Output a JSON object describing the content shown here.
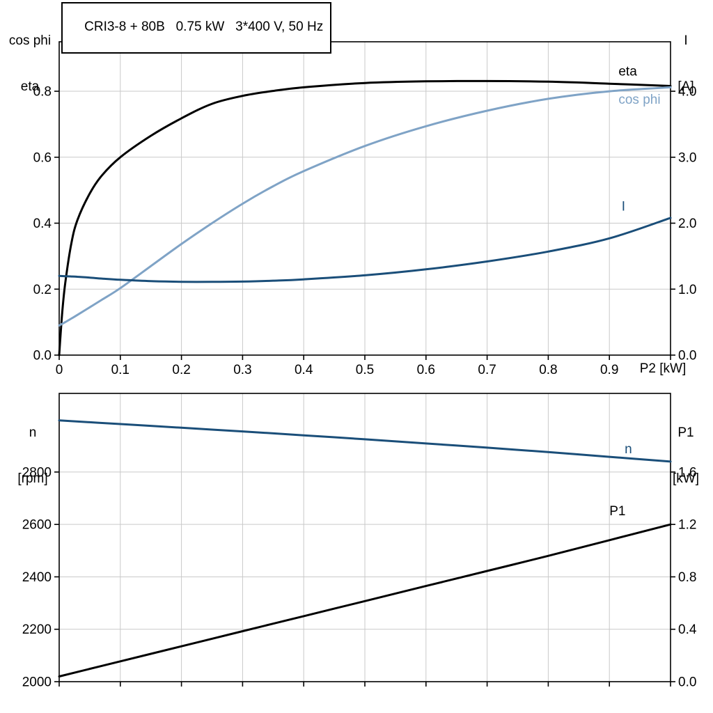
{
  "colors": {
    "black": "#000000",
    "cos_phi_blue": "#7fa3c6",
    "current_blue": "#1a4e79",
    "grid": "#c9c9c9",
    "frame": "#000000"
  },
  "chart_data": [
    {
      "type": "line",
      "title": "CRI3-8 + 80B   0.75 kW   3*400 V, 50 Hz",
      "xlabel": "P2 [kW]",
      "ylabel_left": "cos phi / eta",
      "ylabel_left_lines": [
        "cos phi",
        "eta"
      ],
      "ylabel_right": "I [A]",
      "ylabel_right_lines": [
        "I",
        "[A]"
      ],
      "xlim": [
        0,
        1.0
      ],
      "ylim_left": [
        0,
        0.95
      ],
      "ylim_right": [
        0,
        4.75
      ],
      "grid": true,
      "legend": "inline-curve-labels",
      "x_ticks": [
        {
          "v": 0,
          "label": "0"
        },
        {
          "v": 0.1,
          "label": "0.1"
        },
        {
          "v": 0.2,
          "label": "0.2"
        },
        {
          "v": 0.3,
          "label": "0.3"
        },
        {
          "v": 0.4,
          "label": "0.4"
        },
        {
          "v": 0.5,
          "label": "0.5"
        },
        {
          "v": 0.6,
          "label": "0.6"
        },
        {
          "v": 0.7,
          "label": "0.7"
        },
        {
          "v": 0.8,
          "label": "0.8"
        },
        {
          "v": 0.9,
          "label": "0.9"
        },
        {
          "v": 1.0,
          "label": ""
        }
      ],
      "y_ticks_left": [
        {
          "v": 0,
          "label": "0.0"
        },
        {
          "v": 0.2,
          "label": "0.2"
        },
        {
          "v": 0.4,
          "label": "0.4"
        },
        {
          "v": 0.6,
          "label": "0.6"
        },
        {
          "v": 0.8,
          "label": "0.8"
        }
      ],
      "y_ticks_right": [
        {
          "v": 0,
          "label": "0.0"
        },
        {
          "v": 1,
          "label": "1.0"
        },
        {
          "v": 2,
          "label": "2.0"
        },
        {
          "v": 3,
          "label": "3.0"
        },
        {
          "v": 4,
          "label": "4.0"
        }
      ],
      "x": [
        0,
        0.005,
        0.01,
        0.02,
        0.03,
        0.05,
        0.07,
        0.1,
        0.15,
        0.2,
        0.25,
        0.3,
        0.35,
        0.4,
        0.5,
        0.6,
        0.7,
        0.8,
        0.9,
        1.0
      ],
      "series": [
        {
          "name": "eta",
          "axis": "left",
          "color": "#000000",
          "values": [
            0,
            0.13,
            0.22,
            0.34,
            0.41,
            0.49,
            0.545,
            0.6,
            0.665,
            0.718,
            0.762,
            0.786,
            0.801,
            0.812,
            0.825,
            0.83,
            0.831,
            0.829,
            0.823,
            0.816
          ],
          "label": {
            "text": "eta",
            "x": 0.915,
            "y": 0.848
          }
        },
        {
          "name": "cos phi",
          "axis": "left",
          "color": "#7fa3c6",
          "values": [
            0.09,
            0.095,
            0.1,
            0.111,
            0.122,
            0.145,
            0.168,
            0.203,
            0.27,
            0.337,
            0.4,
            0.459,
            0.512,
            0.558,
            0.634,
            0.694,
            0.741,
            0.777,
            0.8,
            0.812
          ],
          "label": {
            "text": "cos phi",
            "x": 0.915,
            "y": 0.762
          }
        },
        {
          "name": "I",
          "axis": "right",
          "color": "#1a4e79",
          "values": [
            1.2,
            1.198,
            1.196,
            1.192,
            1.188,
            1.175,
            1.16,
            1.142,
            1.121,
            1.112,
            1.11,
            1.115,
            1.128,
            1.148,
            1.21,
            1.3,
            1.42,
            1.57,
            1.77,
            2.08
          ],
          "label": {
            "text": "I",
            "x": 0.92,
            "y": 2.19
          }
        }
      ]
    },
    {
      "type": "line",
      "title": "",
      "xlabel": "",
      "ylabel_left": "n [rpm]",
      "ylabel_left_lines": [
        "n",
        "[rpm]"
      ],
      "ylabel_right": "P1 [kW]",
      "ylabel_right_lines": [
        "P1",
        "[kW]"
      ],
      "xlim": [
        0,
        1.0
      ],
      "ylim_left": [
        2000,
        3100
      ],
      "ylim_right": [
        0,
        2.2
      ],
      "grid": true,
      "legend": "inline-curve-labels",
      "x_ticks": [
        {
          "v": 0,
          "label": ""
        },
        {
          "v": 0.1,
          "label": ""
        },
        {
          "v": 0.2,
          "label": ""
        },
        {
          "v": 0.3,
          "label": ""
        },
        {
          "v": 0.4,
          "label": ""
        },
        {
          "v": 0.5,
          "label": ""
        },
        {
          "v": 0.6,
          "label": ""
        },
        {
          "v": 0.7,
          "label": ""
        },
        {
          "v": 0.8,
          "label": ""
        },
        {
          "v": 0.9,
          "label": ""
        },
        {
          "v": 1.0,
          "label": ""
        }
      ],
      "y_ticks_left": [
        {
          "v": 2000,
          "label": "2000"
        },
        {
          "v": 2200,
          "label": "2200"
        },
        {
          "v": 2400,
          "label": "2400"
        },
        {
          "v": 2600,
          "label": "2600"
        },
        {
          "v": 2800,
          "label": "2800"
        }
      ],
      "y_ticks_right": [
        {
          "v": 0,
          "label": "0.0"
        },
        {
          "v": 0.4,
          "label": "0.4"
        },
        {
          "v": 0.8,
          "label": "0.8"
        },
        {
          "v": 1.2,
          "label": "1.2"
        },
        {
          "v": 1.6,
          "label": "1.6"
        }
      ],
      "x": [
        0,
        0.1,
        0.2,
        0.3,
        0.4,
        0.5,
        0.6,
        0.7,
        0.8,
        0.9,
        1.0
      ],
      "series": [
        {
          "name": "n",
          "axis": "left",
          "color": "#1a4e79",
          "values": [
            2997,
            2983,
            2969,
            2955,
            2940,
            2925,
            2909,
            2893,
            2876,
            2858,
            2840
          ],
          "label": {
            "text": "n",
            "x": 0.925,
            "y": 2872
          }
        },
        {
          "name": "P1",
          "axis": "right",
          "color": "#000000",
          "values": [
            0.04,
            0.155,
            0.27,
            0.385,
            0.5,
            0.615,
            0.73,
            0.845,
            0.96,
            1.08,
            1.2
          ],
          "label": {
            "text": "P1",
            "x": 0.9,
            "y": 1.27
          }
        }
      ]
    }
  ]
}
